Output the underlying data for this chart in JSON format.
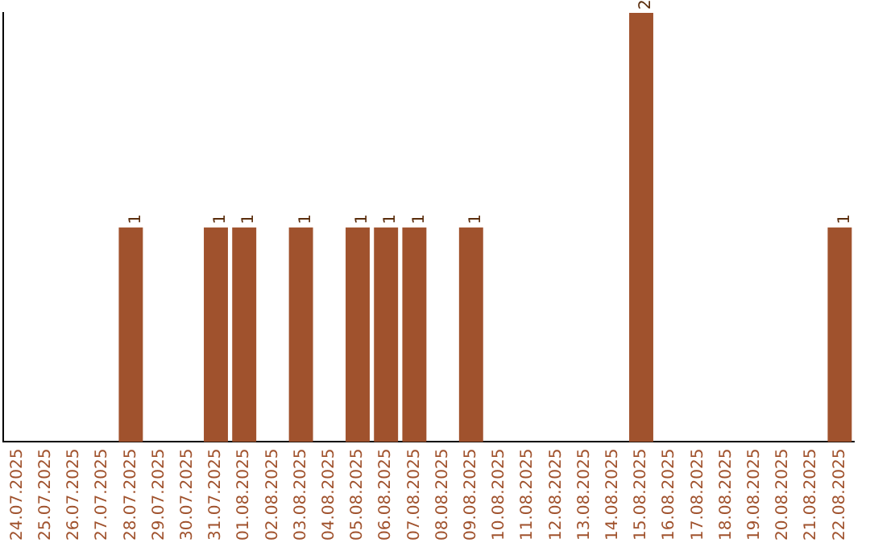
{
  "chart_data": {
    "type": "bar",
    "categories": [
      "24.07.2025",
      "25.07.2025",
      "26.07.2025",
      "27.07.2025",
      "28.07.2025",
      "29.07.2025",
      "30.07.2025",
      "31.07.2025",
      "01.08.2025",
      "02.08.2025",
      "03.08.2025",
      "04.08.2025",
      "05.08.2025",
      "06.08.2025",
      "07.08.2025",
      "08.08.2025",
      "09.08.2025",
      "10.08.2025",
      "11.08.2025",
      "12.08.2025",
      "13.08.2025",
      "14.08.2025",
      "15.08.2025",
      "16.08.2025",
      "17.08.2025",
      "18.08.2025",
      "19.08.2025",
      "20.08.2025",
      "21.08.2025",
      "22.08.2025"
    ],
    "values": [
      0,
      0,
      0,
      0,
      1,
      0,
      0,
      1,
      1,
      0,
      1,
      0,
      1,
      1,
      1,
      0,
      1,
      0,
      0,
      0,
      0,
      0,
      2,
      0,
      0,
      0,
      0,
      0,
      0,
      1
    ],
    "value_labels": [
      null,
      null,
      null,
      null,
      "1",
      null,
      null,
      "1",
      "1",
      null,
      "1",
      null,
      "1",
      "1",
      "1",
      null,
      "1",
      null,
      null,
      null,
      null,
      null,
      "2",
      null,
      null,
      null,
      null,
      null,
      null,
      "1"
    ],
    "color": "#a0522d",
    "grid": false,
    "legend": false,
    "tick_labels": "x"
  }
}
